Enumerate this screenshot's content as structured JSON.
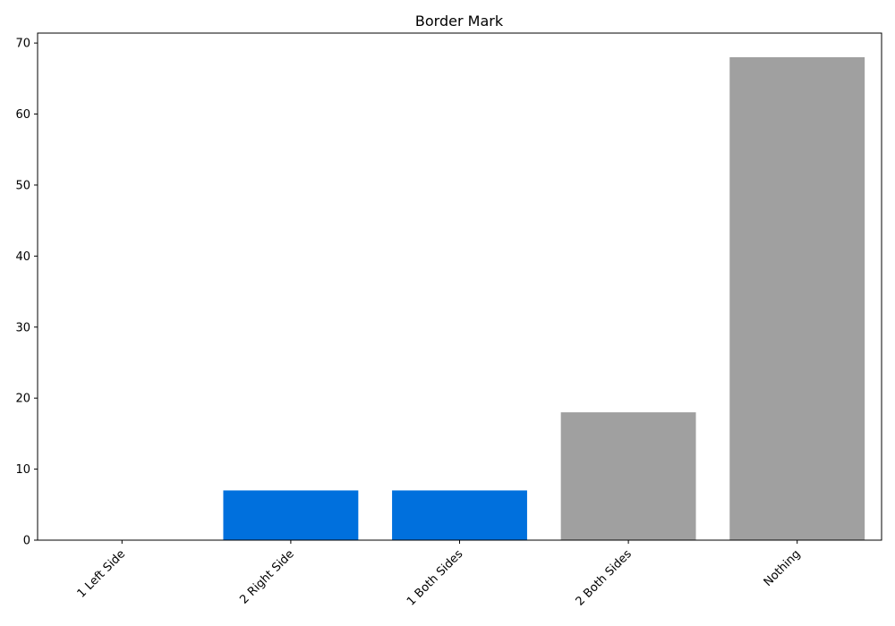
{
  "chart_data": {
    "type": "bar",
    "title": "Border Mark",
    "xlabel": "",
    "ylabel": "",
    "categories": [
      "1 Left Side",
      "2 Right Side",
      "1 Both Sides",
      "2 Both Sides",
      "Nothing"
    ],
    "values": [
      0,
      7,
      7,
      18,
      68
    ],
    "colors": [
      "#0070dd",
      "#0070dd",
      "#0070dd",
      "#a0a0a0",
      "#a0a0a0"
    ],
    "ylim": [
      0,
      71.4
    ],
    "yticks": [
      0,
      10,
      20,
      30,
      40,
      50,
      60,
      70
    ],
    "grid": false,
    "legend": "none",
    "xtick_rotation": 45
  }
}
